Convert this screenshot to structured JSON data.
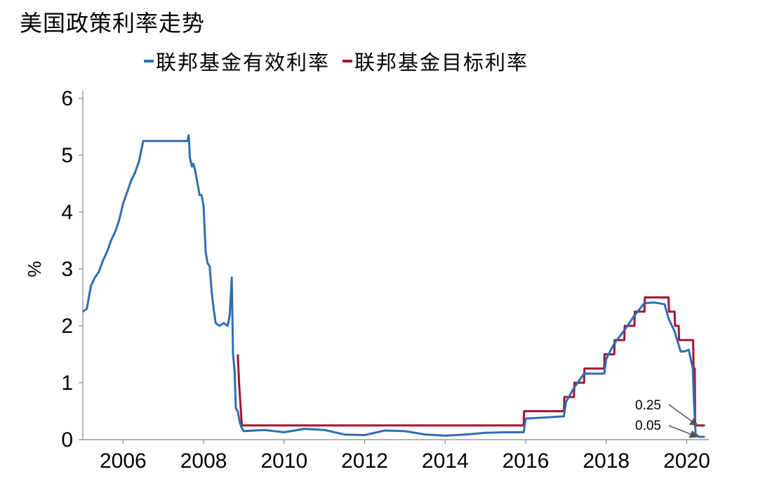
{
  "chart_data": {
    "type": "line",
    "title": "美国政策利率走势",
    "xlabel": "",
    "ylabel": "%",
    "xlim": [
      2005.0,
      2020.55
    ],
    "ylim": [
      0,
      6
    ],
    "x_ticks": [
      2006,
      2008,
      2010,
      2012,
      2014,
      2016,
      2018,
      2020
    ],
    "y_ticks": [
      0,
      1,
      2,
      3,
      4,
      5,
      6
    ],
    "grid": false,
    "legend_position": "top",
    "series": [
      {
        "name": "联邦基金有效利率",
        "color": "#2e6db4",
        "points": [
          [
            2005.0,
            2.25
          ],
          [
            2005.1,
            2.3
          ],
          [
            2005.2,
            2.7
          ],
          [
            2005.3,
            2.85
          ],
          [
            2005.4,
            2.95
          ],
          [
            2005.5,
            3.15
          ],
          [
            2005.6,
            3.3
          ],
          [
            2005.7,
            3.5
          ],
          [
            2005.8,
            3.65
          ],
          [
            2005.9,
            3.85
          ],
          [
            2006.0,
            4.15
          ],
          [
            2006.1,
            4.35
          ],
          [
            2006.2,
            4.55
          ],
          [
            2006.3,
            4.7
          ],
          [
            2006.4,
            4.9
          ],
          [
            2006.5,
            5.25
          ],
          [
            2006.6,
            5.25
          ],
          [
            2006.8,
            5.25
          ],
          [
            2007.0,
            5.25
          ],
          [
            2007.2,
            5.25
          ],
          [
            2007.4,
            5.25
          ],
          [
            2007.6,
            5.25
          ],
          [
            2007.63,
            5.35
          ],
          [
            2007.66,
            4.95
          ],
          [
            2007.71,
            4.8
          ],
          [
            2007.75,
            4.85
          ],
          [
            2007.8,
            4.7
          ],
          [
            2007.85,
            4.5
          ],
          [
            2007.9,
            4.3
          ],
          [
            2007.95,
            4.3
          ],
          [
            2008.0,
            4.1
          ],
          [
            2008.05,
            3.3
          ],
          [
            2008.1,
            3.1
          ],
          [
            2008.15,
            3.05
          ],
          [
            2008.2,
            2.6
          ],
          [
            2008.25,
            2.3
          ],
          [
            2008.3,
            2.05
          ],
          [
            2008.4,
            2.0
          ],
          [
            2008.5,
            2.05
          ],
          [
            2008.6,
            2.0
          ],
          [
            2008.65,
            2.2
          ],
          [
            2008.7,
            2.85
          ],
          [
            2008.73,
            1.5
          ],
          [
            2008.77,
            1.2
          ],
          [
            2008.8,
            0.55
          ],
          [
            2008.85,
            0.5
          ],
          [
            2008.9,
            0.3
          ],
          [
            2008.95,
            0.2
          ],
          [
            2009.0,
            0.15
          ],
          [
            2009.5,
            0.17
          ],
          [
            2010.0,
            0.13
          ],
          [
            2010.5,
            0.19
          ],
          [
            2011.0,
            0.17
          ],
          [
            2011.5,
            0.09
          ],
          [
            2012.0,
            0.08
          ],
          [
            2012.5,
            0.16
          ],
          [
            2013.0,
            0.15
          ],
          [
            2013.5,
            0.09
          ],
          [
            2014.0,
            0.07
          ],
          [
            2014.5,
            0.09
          ],
          [
            2015.0,
            0.12
          ],
          [
            2015.5,
            0.13
          ],
          [
            2015.95,
            0.13
          ],
          [
            2016.0,
            0.37
          ],
          [
            2016.5,
            0.39
          ],
          [
            2016.95,
            0.41
          ],
          [
            2017.0,
            0.66
          ],
          [
            2017.2,
            0.91
          ],
          [
            2017.45,
            1.16
          ],
          [
            2017.95,
            1.16
          ],
          [
            2018.0,
            1.42
          ],
          [
            2018.2,
            1.69
          ],
          [
            2018.45,
            1.92
          ],
          [
            2018.7,
            2.18
          ],
          [
            2018.95,
            2.4
          ],
          [
            2019.2,
            2.41
          ],
          [
            2019.45,
            2.38
          ],
          [
            2019.55,
            2.13
          ],
          [
            2019.7,
            1.9
          ],
          [
            2019.85,
            1.55
          ],
          [
            2019.95,
            1.55
          ],
          [
            2020.05,
            1.58
          ],
          [
            2020.15,
            1.25
          ],
          [
            2020.18,
            0.65
          ],
          [
            2020.22,
            0.1
          ],
          [
            2020.3,
            0.05
          ],
          [
            2020.45,
            0.05
          ]
        ]
      },
      {
        "name": "联邦基金目标利率",
        "color": "#a3172f",
        "points": [
          [
            2008.85,
            1.5
          ],
          [
            2008.88,
            1.0
          ],
          [
            2008.95,
            0.25
          ],
          [
            2015.95,
            0.25
          ],
          [
            2015.96,
            0.5
          ],
          [
            2016.95,
            0.5
          ],
          [
            2016.96,
            0.75
          ],
          [
            2017.2,
            0.75
          ],
          [
            2017.21,
            1.0
          ],
          [
            2017.45,
            1.0
          ],
          [
            2017.46,
            1.25
          ],
          [
            2017.95,
            1.25
          ],
          [
            2017.96,
            1.5
          ],
          [
            2018.2,
            1.5
          ],
          [
            2018.21,
            1.75
          ],
          [
            2018.45,
            1.75
          ],
          [
            2018.46,
            2.0
          ],
          [
            2018.7,
            2.0
          ],
          [
            2018.71,
            2.25
          ],
          [
            2018.95,
            2.25
          ],
          [
            2018.96,
            2.5
          ],
          [
            2019.55,
            2.5
          ],
          [
            2019.56,
            2.25
          ],
          [
            2019.7,
            2.25
          ],
          [
            2019.71,
            2.0
          ],
          [
            2019.8,
            2.0
          ],
          [
            2019.81,
            1.75
          ],
          [
            2020.16,
            1.75
          ],
          [
            2020.17,
            1.25
          ],
          [
            2020.2,
            1.25
          ],
          [
            2020.21,
            0.25
          ],
          [
            2020.45,
            0.25
          ]
        ]
      }
    ],
    "annotations": [
      {
        "text": "0.25",
        "target": [
          2020.3,
          0.25
        ]
      },
      {
        "text": "0.05",
        "target": [
          2020.3,
          0.05
        ]
      }
    ]
  }
}
